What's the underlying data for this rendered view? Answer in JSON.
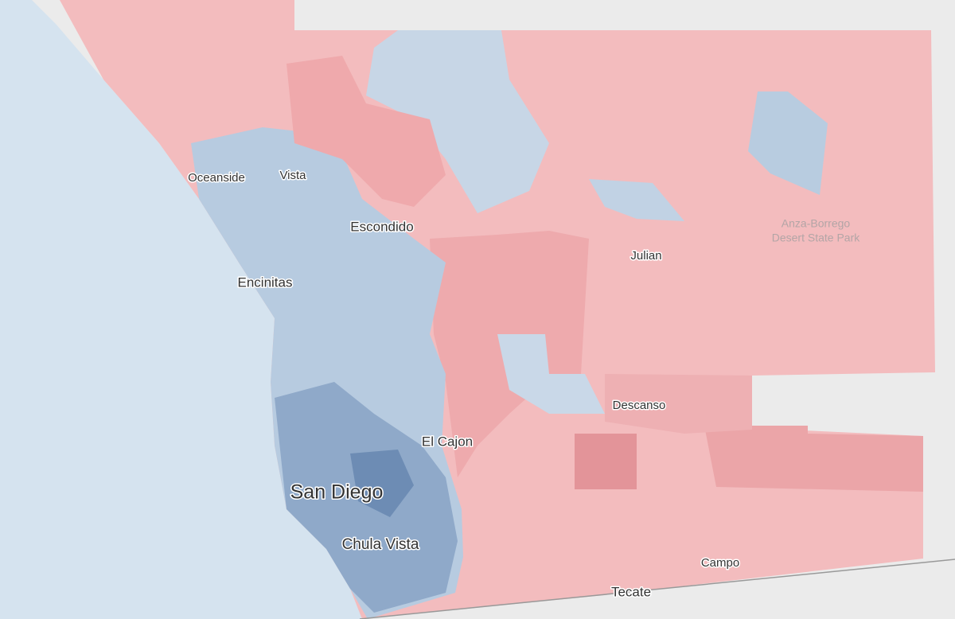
{
  "map": {
    "places": [
      "Oceanside",
      "Vista",
      "Escondido",
      "Encinitas",
      "Julian",
      "Descanso",
      "El Cajon",
      "San Diego",
      "Chula Vista",
      "Campo",
      "Tecate"
    ],
    "park_label": [
      "Anza-Borrego",
      "Desert State Park"
    ]
  }
}
